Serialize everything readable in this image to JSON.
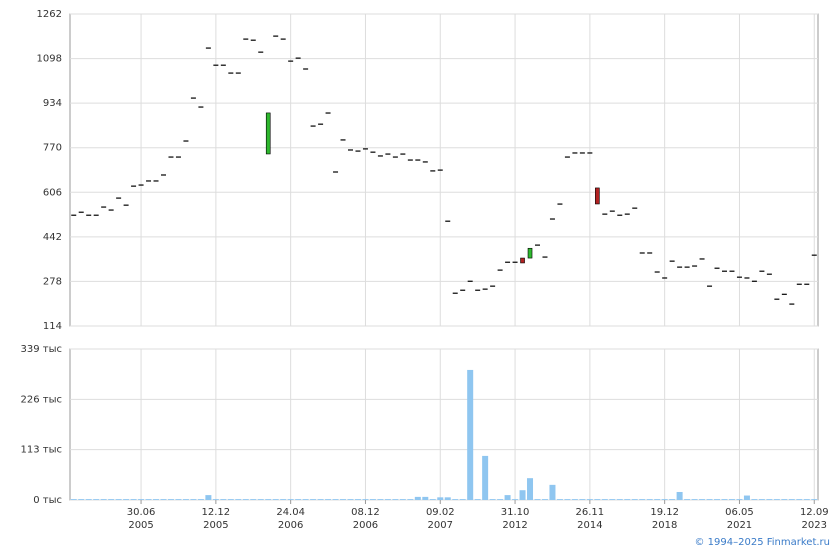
{
  "chart_data": {
    "type": "candlestick",
    "categories": [
      null,
      null,
      null,
      null,
      null,
      null,
      null,
      null,
      null,
      [
        "30.06",
        "2005"
      ],
      null,
      null,
      null,
      null,
      null,
      null,
      null,
      null,
      null,
      [
        "12.12",
        "2005"
      ],
      null,
      null,
      null,
      null,
      null,
      null,
      null,
      null,
      null,
      [
        "24.04",
        "2006"
      ],
      null,
      null,
      null,
      null,
      null,
      null,
      null,
      null,
      null,
      [
        "08.12",
        "2006"
      ],
      null,
      null,
      null,
      null,
      null,
      null,
      null,
      null,
      null,
      [
        "09.02",
        "2007"
      ],
      null,
      null,
      null,
      null,
      null,
      null,
      null,
      null,
      null,
      [
        "31.10",
        "2012"
      ],
      null,
      null,
      null,
      null,
      null,
      null,
      null,
      null,
      null,
      [
        "26.11",
        "2014"
      ],
      null,
      null,
      null,
      null,
      null,
      null,
      null,
      null,
      null,
      [
        "19.12",
        "2018"
      ],
      null,
      null,
      null,
      null,
      null,
      null,
      null,
      null,
      null,
      [
        "06.05",
        "2021"
      ],
      null,
      null,
      null,
      null,
      null,
      null,
      null,
      null,
      null,
      [
        "12.09",
        "2023"
      ]
    ],
    "open": [
      522,
      533,
      522,
      522,
      552,
      541,
      585,
      559,
      629,
      633,
      648,
      648,
      670,
      736,
      736,
      795,
      953,
      920,
      1137,
      1074,
      1074,
      1045,
      1045,
      1170,
      1166,
      1122,
      747,
      1181,
      1170,
      1089,
      1100,
      1060,
      850,
      857,
      898,
      681,
      799,
      762,
      758,
      766,
      754,
      740,
      747,
      736,
      747,
      725,
      725,
      718,
      685,
      688,
      500,
      235,
      246,
      279,
      246,
      250,
      261,
      320,
      349,
      349,
      364,
      364,
      412,
      368,
      508,
      563,
      736,
      751,
      751,
      751,
      622,
      526,
      537,
      522,
      526,
      548,
      383,
      383,
      313,
      291,
      353,
      331,
      331,
      335,
      361,
      261,
      327,
      316,
      316,
      294,
      291,
      279,
      316,
      305,
      213,
      231,
      195,
      268,
      268,
      375
    ],
    "close": [
      522,
      533,
      522,
      522,
      552,
      541,
      585,
      559,
      629,
      633,
      648,
      648,
      670,
      736,
      736,
      795,
      953,
      920,
      1137,
      1074,
      1074,
      1045,
      1045,
      1170,
      1166,
      1122,
      898,
      1181,
      1170,
      1089,
      1100,
      1060,
      850,
      857,
      898,
      681,
      799,
      762,
      758,
      766,
      754,
      740,
      747,
      736,
      747,
      725,
      725,
      718,
      685,
      688,
      500,
      235,
      246,
      279,
      246,
      250,
      261,
      320,
      349,
      349,
      346,
      400,
      412,
      368,
      508,
      563,
      736,
      751,
      751,
      751,
      563,
      526,
      537,
      522,
      526,
      548,
      383,
      383,
      313,
      291,
      353,
      331,
      331,
      335,
      361,
      261,
      327,
      316,
      316,
      294,
      291,
      279,
      316,
      305,
      213,
      231,
      195,
      268,
      268,
      375
    ],
    "up_color": "#2eb82e",
    "down_color": "#b22222",
    "ylim": [
      114,
      1262
    ],
    "yticks": [
      114,
      278,
      442,
      606,
      770,
      934,
      1098,
      1262
    ],
    "grid": true,
    "volume": {
      "type": "bar",
      "color": "#8fc6f0",
      "values": [
        2,
        2,
        2,
        2,
        2,
        2,
        2,
        2,
        2,
        2,
        2,
        2,
        2,
        2,
        2,
        2,
        2,
        2,
        11,
        2,
        2,
        2,
        2,
        2,
        2,
        2,
        2,
        2,
        2,
        2,
        2,
        2,
        2,
        2,
        2,
        2,
        2,
        2,
        2,
        2,
        2,
        2,
        2,
        2,
        2,
        2,
        7,
        7,
        2,
        6,
        6,
        2,
        2,
        292,
        2,
        99,
        2,
        2,
        11,
        2,
        22,
        49,
        2,
        2,
        34,
        2,
        2,
        2,
        2,
        2,
        2,
        2,
        2,
        2,
        2,
        2,
        2,
        2,
        2,
        2,
        2,
        18,
        2,
        2,
        2,
        2,
        2,
        2,
        2,
        2,
        10,
        2,
        2,
        2,
        2,
        2,
        2,
        2,
        2,
        2
      ],
      "ylim": [
        0,
        339
      ],
      "yticks": [
        {
          "value": 0,
          "label": "0 тыс"
        },
        {
          "value": 113,
          "label": "113 тыс"
        },
        {
          "value": 226,
          "label": "226 тыс"
        },
        {
          "value": 339,
          "label": "339 тыс"
        }
      ]
    }
  },
  "footer": "© 1994–2025 Finmarket.ru"
}
